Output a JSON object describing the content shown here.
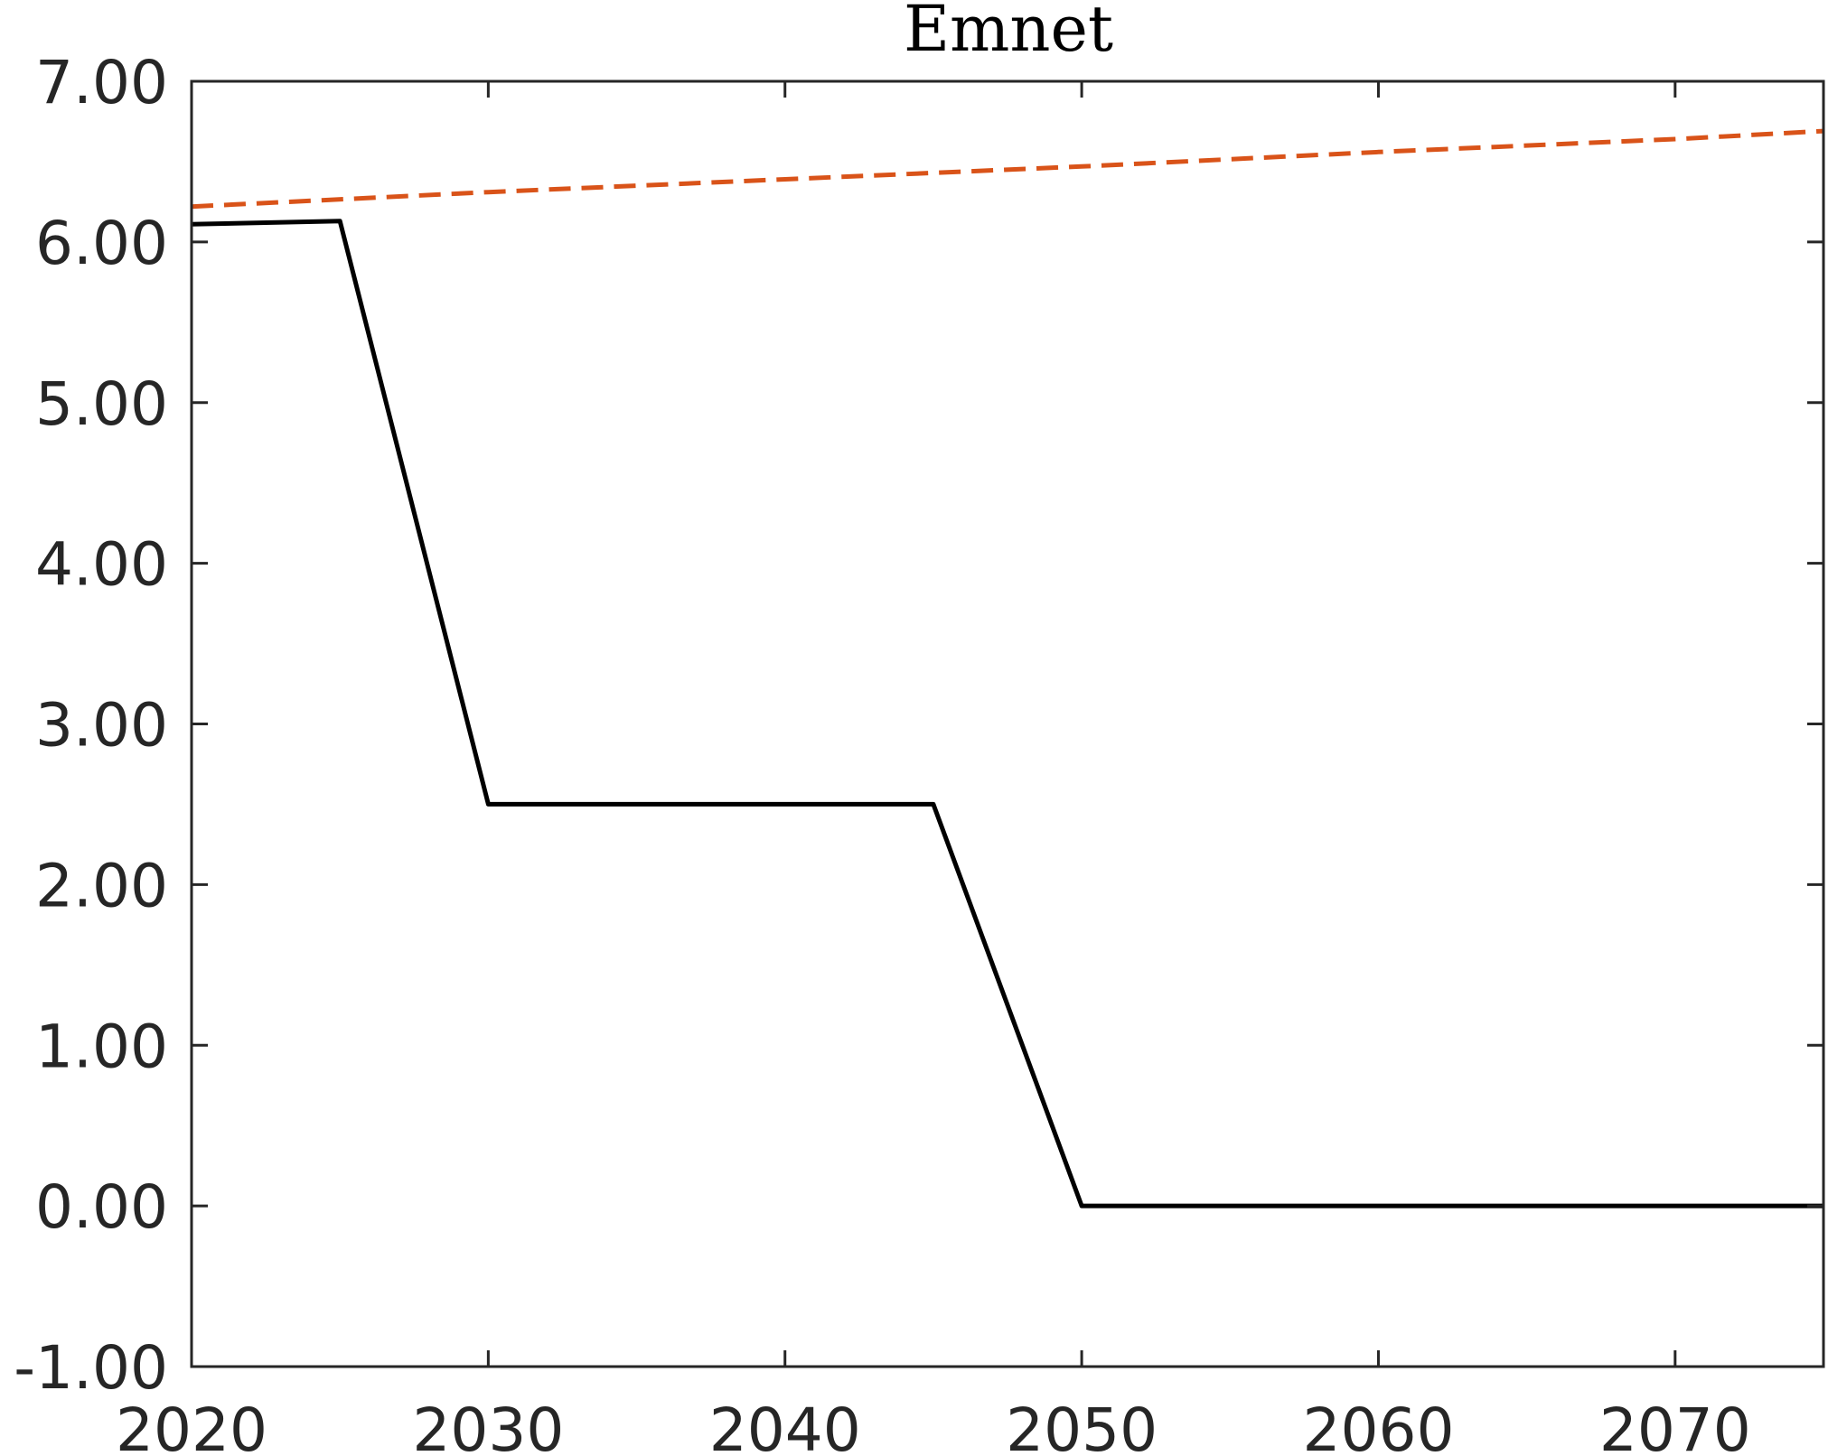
{
  "chart_data": {
    "type": "line",
    "title": "Emnet",
    "xlabel": "",
    "ylabel": "",
    "xlim": [
      2020,
      2075
    ],
    "ylim": [
      -1,
      7
    ],
    "x_ticks": [
      2020,
      2030,
      2040,
      2050,
      2060,
      2070
    ],
    "x_tick_labels": [
      "2020",
      "2030",
      "2040",
      "2050",
      "2060",
      "2070"
    ],
    "y_ticks": [
      -1,
      0,
      1,
      2,
      3,
      4,
      5,
      6,
      7
    ],
    "y_tick_labels": [
      "-1.00",
      "0.00",
      "1.00",
      "2.00",
      "3.00",
      "4.00",
      "5.00",
      "6.00",
      "7.00"
    ],
    "grid": false,
    "legend": "none",
    "series": [
      {
        "style": "solid",
        "color": "#000000",
        "x": [
          2020,
          2025,
          2030,
          2045,
          2050,
          2075
        ],
        "y": [
          6.11,
          6.13,
          2.5,
          2.5,
          0.0,
          0.0
        ]
      },
      {
        "style": "dashed",
        "color": "#D95319",
        "x": [
          2020,
          2030,
          2040,
          2050,
          2060,
          2070,
          2075
        ],
        "y": [
          6.22,
          6.31,
          6.39,
          6.47,
          6.56,
          6.64,
          6.69
        ]
      }
    ]
  }
}
